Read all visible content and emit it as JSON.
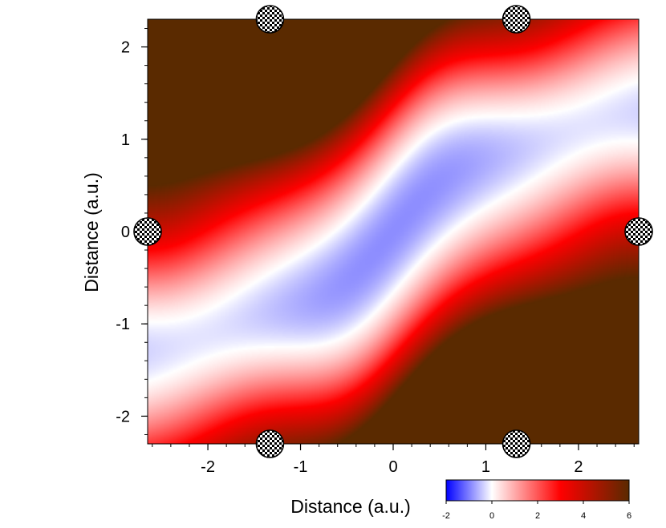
{
  "chart_data": {
    "type": "heatmap",
    "title": "",
    "xlabel": "Distance (a.u.)",
    "ylabel": "Distance (a.u.)",
    "xlim": [
      -2.65,
      2.65
    ],
    "ylim": [
      -2.3,
      2.3
    ],
    "x_ticks": [
      {
        "value": -2,
        "label": "-2"
      },
      {
        "value": -1,
        "label": "-1"
      },
      {
        "value": 0,
        "label": "0"
      },
      {
        "value": 1,
        "label": "1"
      },
      {
        "value": 2,
        "label": "2"
      }
    ],
    "y_ticks": [
      {
        "value": -2,
        "label": "-2"
      },
      {
        "value": -1,
        "label": "-1"
      },
      {
        "value": 0,
        "label": "0"
      },
      {
        "value": 1,
        "label": "1"
      },
      {
        "value": 2,
        "label": "2"
      }
    ],
    "x_minor_step": 0.2,
    "y_minor_step": 0.2,
    "grid": false,
    "markers": [
      {
        "x": -1.33,
        "y": 2.3
      },
      {
        "x": 1.33,
        "y": 2.3
      },
      {
        "x": -2.65,
        "y": 0
      },
      {
        "x": 2.65,
        "y": 0
      },
      {
        "x": -1.33,
        "y": -2.3
      },
      {
        "x": 1.33,
        "y": -2.3
      }
    ],
    "colorbar": {
      "min": -2,
      "max": 6,
      "placement": "bottom-right",
      "ticks": [
        {
          "value": -2,
          "label": "-2"
        },
        {
          "value": 0,
          "label": "0"
        },
        {
          "value": 2,
          "label": "2"
        },
        {
          "value": 4,
          "label": "4"
        },
        {
          "value": 6,
          "label": "6"
        }
      ],
      "colors": [
        {
          "value": -2,
          "color": "#0000ff"
        },
        {
          "value": 0,
          "color": "#ffffff"
        },
        {
          "value": 3,
          "color": "#ff0000"
        },
        {
          "value": 6,
          "color": "#5a2a00"
        }
      ]
    }
  }
}
